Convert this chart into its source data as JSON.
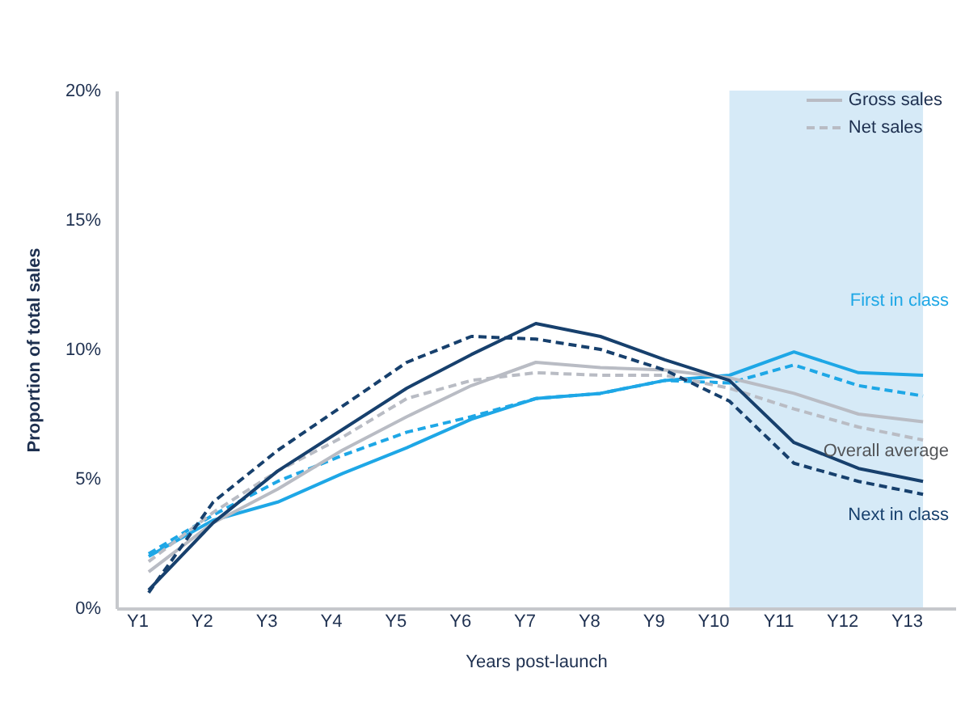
{
  "chart_data": {
    "type": "line",
    "xlabel": "Years post-launch",
    "ylabel": "Proportion of total sales",
    "categories": [
      "Y1",
      "Y2",
      "Y3",
      "Y4",
      "Y5",
      "Y6",
      "Y7",
      "Y8",
      "Y9",
      "Y10",
      "Y11",
      "Y12",
      "Y13"
    ],
    "ylim": [
      0,
      20
    ],
    "yticks": [
      {
        "value": 0,
        "label": "0%"
      },
      {
        "value": 5,
        "label": "5%"
      },
      {
        "value": 10,
        "label": "10%"
      },
      {
        "value": 15,
        "label": "15%"
      },
      {
        "value": 20,
        "label": "20%"
      }
    ],
    "grid": false,
    "marker": "none",
    "annotations": [
      "Gross sales",
      "Net sales"
    ],
    "bands": [
      {
        "axis": "x",
        "from": "Y10",
        "to": "Y13",
        "color": "#d6eaf7"
      }
    ],
    "series": [
      {
        "name": "First in class",
        "color": "#1ea7e6",
        "line_style": "solid",
        "values": [
          2.0,
          3.4,
          4.1,
          5.2,
          6.2,
          7.3,
          8.1,
          8.3,
          8.8,
          9.0,
          9.9,
          9.1,
          9.0
        ]
      },
      {
        "color": "#1ea7e6",
        "line_style": "dashed",
        "values": [
          2.1,
          3.6,
          4.9,
          5.9,
          6.8,
          7.4,
          8.1,
          8.3,
          8.8,
          8.7,
          9.4,
          8.6,
          8.2
        ]
      },
      {
        "name": "Overall average",
        "color": "#b9bcc4",
        "line_style": "solid",
        "values": [
          1.4,
          3.3,
          4.6,
          6.1,
          7.4,
          8.6,
          9.5,
          9.3,
          9.2,
          8.9,
          8.3,
          7.5,
          7.2
        ]
      },
      {
        "color": "#b9bcc4",
        "line_style": "dashed",
        "values": [
          1.8,
          3.7,
          5.3,
          6.6,
          8.1,
          8.8,
          9.1,
          9.0,
          9.0,
          8.5,
          7.7,
          7.0,
          6.5
        ]
      },
      {
        "name": "Next in class",
        "color": "#17406d",
        "line_style": "solid",
        "values": [
          0.7,
          3.3,
          5.3,
          6.9,
          8.5,
          9.8,
          11.0,
          10.5,
          9.6,
          8.8,
          6.4,
          5.4,
          4.9
        ]
      },
      {
        "color": "#17406d",
        "line_style": "dashed",
        "values": [
          0.6,
          4.1,
          6.1,
          7.8,
          9.5,
          10.5,
          10.4,
          10.0,
          9.2,
          8.0,
          5.6,
          4.9,
          4.4
        ]
      }
    ]
  }
}
